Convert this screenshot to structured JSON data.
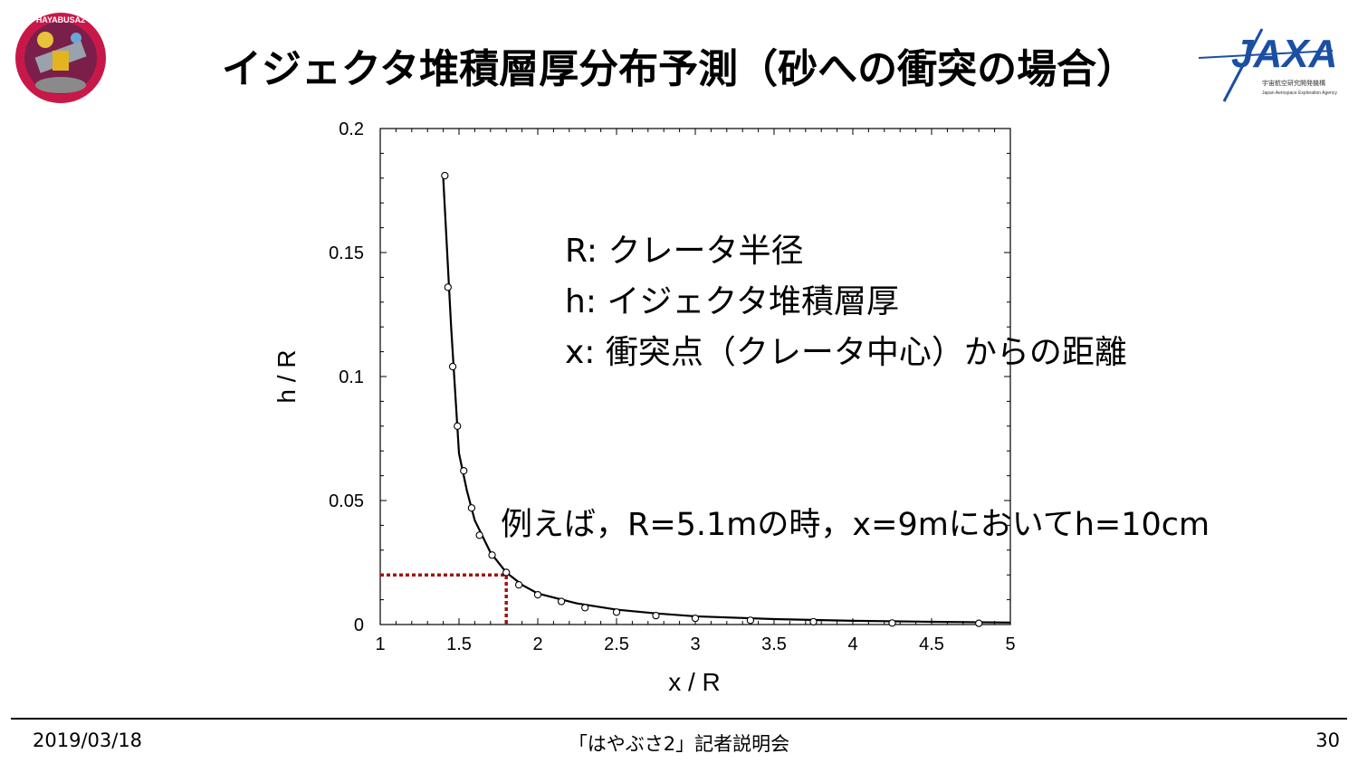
{
  "slide": {
    "title": "イジェクタ堆積層厚分布予測（砂への衝突の場合）",
    "mission_logo_text": "HAYABUSA2",
    "agency_logo_text": "JAXA",
    "agency_subtext": "宇宙航空研究開発機構",
    "agency_subtext_en": "Japan Aerospace Exploration Agency"
  },
  "legend_notes": {
    "line1": "R: クレータ半径",
    "line2": "h: イジェクタ堆積層厚",
    "line3": "x: 衝突点（クレータ中心）からの距離"
  },
  "example_note": "例えば，R=5.1mの時，x=9mにおいてh=10cm",
  "footer": {
    "date": "2019/03/18",
    "event": "「はやぶさ2」記者説明会",
    "page": "30"
  },
  "colors": {
    "curve": "#000000",
    "marker_guide": "#a01414",
    "axis": "#000000"
  },
  "chart_data": {
    "type": "line",
    "xlabel": "x / R",
    "ylabel": "h / R",
    "xlim": [
      1,
      5
    ],
    "ylim": [
      0,
      0.2
    ],
    "xticks": [
      "1",
      "1.5",
      "2",
      "2.5",
      "3",
      "3.5",
      "4",
      "4.5",
      "5"
    ],
    "yticks": [
      "0",
      "0.05",
      "0.1",
      "0.15",
      "0.2"
    ],
    "grid": false,
    "series": [
      {
        "kind": "line",
        "x": [
          1.4,
          1.45,
          1.5,
          1.55,
          1.6,
          1.7,
          1.8,
          1.9,
          2.0,
          2.25,
          2.5,
          2.75,
          3.0,
          3.5,
          4.0,
          4.5,
          5.0
        ],
        "y": [
          0.18,
          0.12,
          0.069,
          0.054,
          0.042,
          0.029,
          0.021,
          0.016,
          0.0125,
          0.0085,
          0.006,
          0.0045,
          0.0033,
          0.0022,
          0.0015,
          0.0011,
          0.0008
        ]
      },
      {
        "kind": "scatter",
        "x": [
          1.41,
          1.43,
          1.46,
          1.49,
          1.53,
          1.58,
          1.63,
          1.71,
          1.8,
          1.88,
          2.0,
          2.15,
          2.3,
          2.5,
          2.75,
          3.0,
          3.35,
          3.75,
          4.25,
          4.8
        ],
        "y": [
          0.181,
          0.136,
          0.104,
          0.08,
          0.062,
          0.047,
          0.036,
          0.028,
          0.021,
          0.016,
          0.012,
          0.0093,
          0.0068,
          0.005,
          0.0036,
          0.0025,
          0.0017,
          0.0011,
          0.0006,
          0.0005
        ]
      }
    ],
    "marker_point": {
      "x": 1.8,
      "y": 0.02
    }
  }
}
